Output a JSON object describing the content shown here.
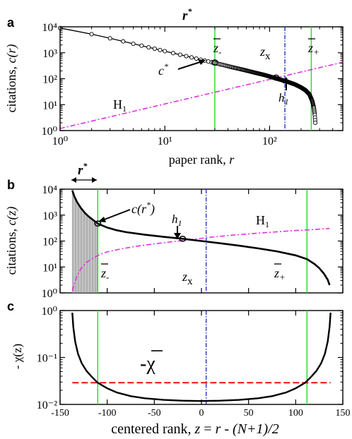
{
  "colors": {
    "curve": "#000000",
    "green": "#22dd22",
    "blue": "#2233cc",
    "magenta": "#dd33dd",
    "red": "#ee1111",
    "gray": "#999999"
  },
  "chart_data": [
    {
      "panel": "a",
      "type": "line",
      "x_scale": "log",
      "y_scale": "log",
      "xlim": [
        1,
        500
      ],
      "ylim": [
        1,
        10000
      ],
      "xlabel": "paper rank, r",
      "ylabel": "citations, c(r)",
      "x_ticks": [
        {
          "v": 1,
          "label": "10⁰"
        },
        {
          "v": 10,
          "label": "10¹"
        },
        {
          "v": 100,
          "label": "10²"
        }
      ],
      "y_ticks": [
        {
          "v": 1,
          "label": "10⁰"
        },
        {
          "v": 10,
          "label": "10¹"
        },
        {
          "v": 100,
          "label": "10²"
        },
        {
          "v": 1000,
          "label": "10³"
        },
        {
          "v": 10000,
          "label": "10⁴"
        }
      ],
      "series": [
        {
          "role": "data",
          "x": [
            1,
            2,
            3,
            4,
            5,
            6,
            7,
            8,
            10,
            12,
            14,
            17,
            20,
            24,
            28,
            32,
            38,
            45,
            55,
            65,
            75,
            90,
            105,
            115,
            130,
            150,
            175,
            200,
            220,
            240,
            255,
            265,
            270,
            273
          ],
          "y": [
            9000,
            5200,
            3600,
            2750,
            2220,
            1880,
            1620,
            1430,
            1150,
            970,
            840,
            700,
            595,
            500,
            430,
            380,
            320,
            270,
            225,
            190,
            165,
            138,
            115,
            103,
            89,
            75,
            60,
            46,
            36,
            25,
            14,
            7.5,
            4,
            2
          ]
        },
        {
          "role": "H1",
          "x": [
            1,
            500
          ],
          "y": [
            1.2,
            430
          ]
        }
      ],
      "vlines": [
        {
          "role": "r-star",
          "x": 30
        },
        {
          "role": "z-x",
          "x": 140
        },
        {
          "role": "z-plus",
          "x": 250
        }
      ],
      "markers": [
        {
          "role": "c-star",
          "x": 30,
          "y": 420
        },
        {
          "role": "h1",
          "x": 115,
          "y": 110
        }
      ],
      "labels": {
        "panel": "a",
        "rstar": "r*",
        "zminus": "z-",
        "zx": "zx",
        "zplus": "z+",
        "cstar": "c*",
        "h1": "h1",
        "H1": "H1"
      }
    },
    {
      "panel": "b",
      "type": "line",
      "x_scale": "linear",
      "y_scale": "log",
      "xlim": [
        -150,
        150
      ],
      "ylim": [
        1,
        10000
      ],
      "ylabel": "citations, c(z)",
      "y_ticks": [
        {
          "v": 1,
          "label": "10⁰"
        },
        {
          "v": 10,
          "label": "10¹"
        },
        {
          "v": 100,
          "label": "10²"
        },
        {
          "v": 1000,
          "label": "10³"
        },
        {
          "v": 10000,
          "label": "10⁴"
        }
      ],
      "series": [
        {
          "role": "data",
          "x": [
            -137,
            -135,
            -132,
            -128,
            -124,
            -120,
            -115,
            -110,
            -100,
            -90,
            -80,
            -60,
            -40,
            -20,
            0,
            20,
            40,
            60,
            80,
            100,
            112,
            120,
            125,
            130,
            134,
            136
          ],
          "y": [
            9000,
            5400,
            3200,
            1900,
            1250,
            900,
            650,
            470,
            330,
            260,
            220,
            175,
            145,
            122,
            100,
            82,
            66,
            52,
            40,
            28,
            20,
            13,
            9,
            5.5,
            3.2,
            2
          ]
        },
        {
          "role": "H1",
          "x": [
            -137,
            -135,
            -132,
            -128,
            -122,
            -115,
            -108,
            -100,
            -85,
            -70,
            -50,
            -30,
            -10,
            10,
            30,
            60,
            90,
            120,
            136
          ],
          "y": [
            1.2,
            2.2,
            4.5,
            8.5,
            15,
            22,
            30,
            38,
            50,
            62,
            78,
            95,
            115,
            140,
            165,
            200,
            240,
            280,
            305
          ]
        }
      ],
      "vlines": [
        {
          "role": "z-minus",
          "x": -110
        },
        {
          "role": "z-x",
          "x": 5
        },
        {
          "role": "z-plus",
          "x": 112
        }
      ],
      "shade_range": [
        -137,
        -110
      ],
      "markers": [
        {
          "role": "c-r-star",
          "x": -110,
          "y": 470
        },
        {
          "role": "h1",
          "x": -20,
          "y": 122
        }
      ],
      "labels": {
        "panel": "b",
        "rstar": "r*",
        "crstar": "c(r*)",
        "h1": "h1",
        "H1": "H1",
        "zminus": "z-",
        "zx": "zx",
        "zplus": "z+"
      }
    },
    {
      "panel": "c",
      "type": "line",
      "x_scale": "linear",
      "y_scale": "log",
      "xlim": [
        -150,
        150
      ],
      "ylim": [
        0.01,
        1
      ],
      "xlabel": "centered rank, z = r - (N+1)/2",
      "ylabel": "- χ(z)",
      "x_ticks": [
        {
          "v": -150,
          "label": "-150"
        },
        {
          "v": -100,
          "label": "-100"
        },
        {
          "v": -50,
          "label": "-50"
        },
        {
          "v": 0,
          "label": "0"
        },
        {
          "v": 50,
          "label": "50"
        },
        {
          "v": 100,
          "label": "100"
        },
        {
          "v": 150,
          "label": "150"
        }
      ],
      "y_ticks": [
        {
          "v": 0.01,
          "label": "10⁻²"
        },
        {
          "v": 0.1,
          "label": "10⁻¹"
        },
        {
          "v": 1,
          "label": "10⁰"
        }
      ],
      "series": [
        {
          "role": "chi",
          "x": [
            -137,
            -136,
            -134,
            -131,
            -127,
            -122,
            -116,
            -110,
            -100,
            -90,
            -75,
            -60,
            -40,
            -20,
            0,
            20,
            40,
            60,
            75,
            90,
            100,
            110,
            116,
            122,
            127,
            131,
            134,
            136,
            137
          ],
          "y": [
            0.9,
            0.45,
            0.22,
            0.12,
            0.075,
            0.052,
            0.038,
            0.029,
            0.022,
            0.018,
            0.015,
            0.0135,
            0.0125,
            0.012,
            0.0118,
            0.012,
            0.0125,
            0.0135,
            0.015,
            0.018,
            0.022,
            0.029,
            0.038,
            0.052,
            0.075,
            0.12,
            0.22,
            0.45,
            0.9
          ]
        },
        {
          "role": "chi-bar",
          "x": [
            -137,
            137
          ],
          "y": [
            0.029,
            0.029
          ]
        }
      ],
      "vlines": [
        {
          "role": "z-minus",
          "x": -110
        },
        {
          "role": "z-x",
          "x": 5
        },
        {
          "role": "z-plus",
          "x": 112
        }
      ],
      "labels": {
        "panel": "c",
        "chibar": "-χ"
      }
    }
  ]
}
